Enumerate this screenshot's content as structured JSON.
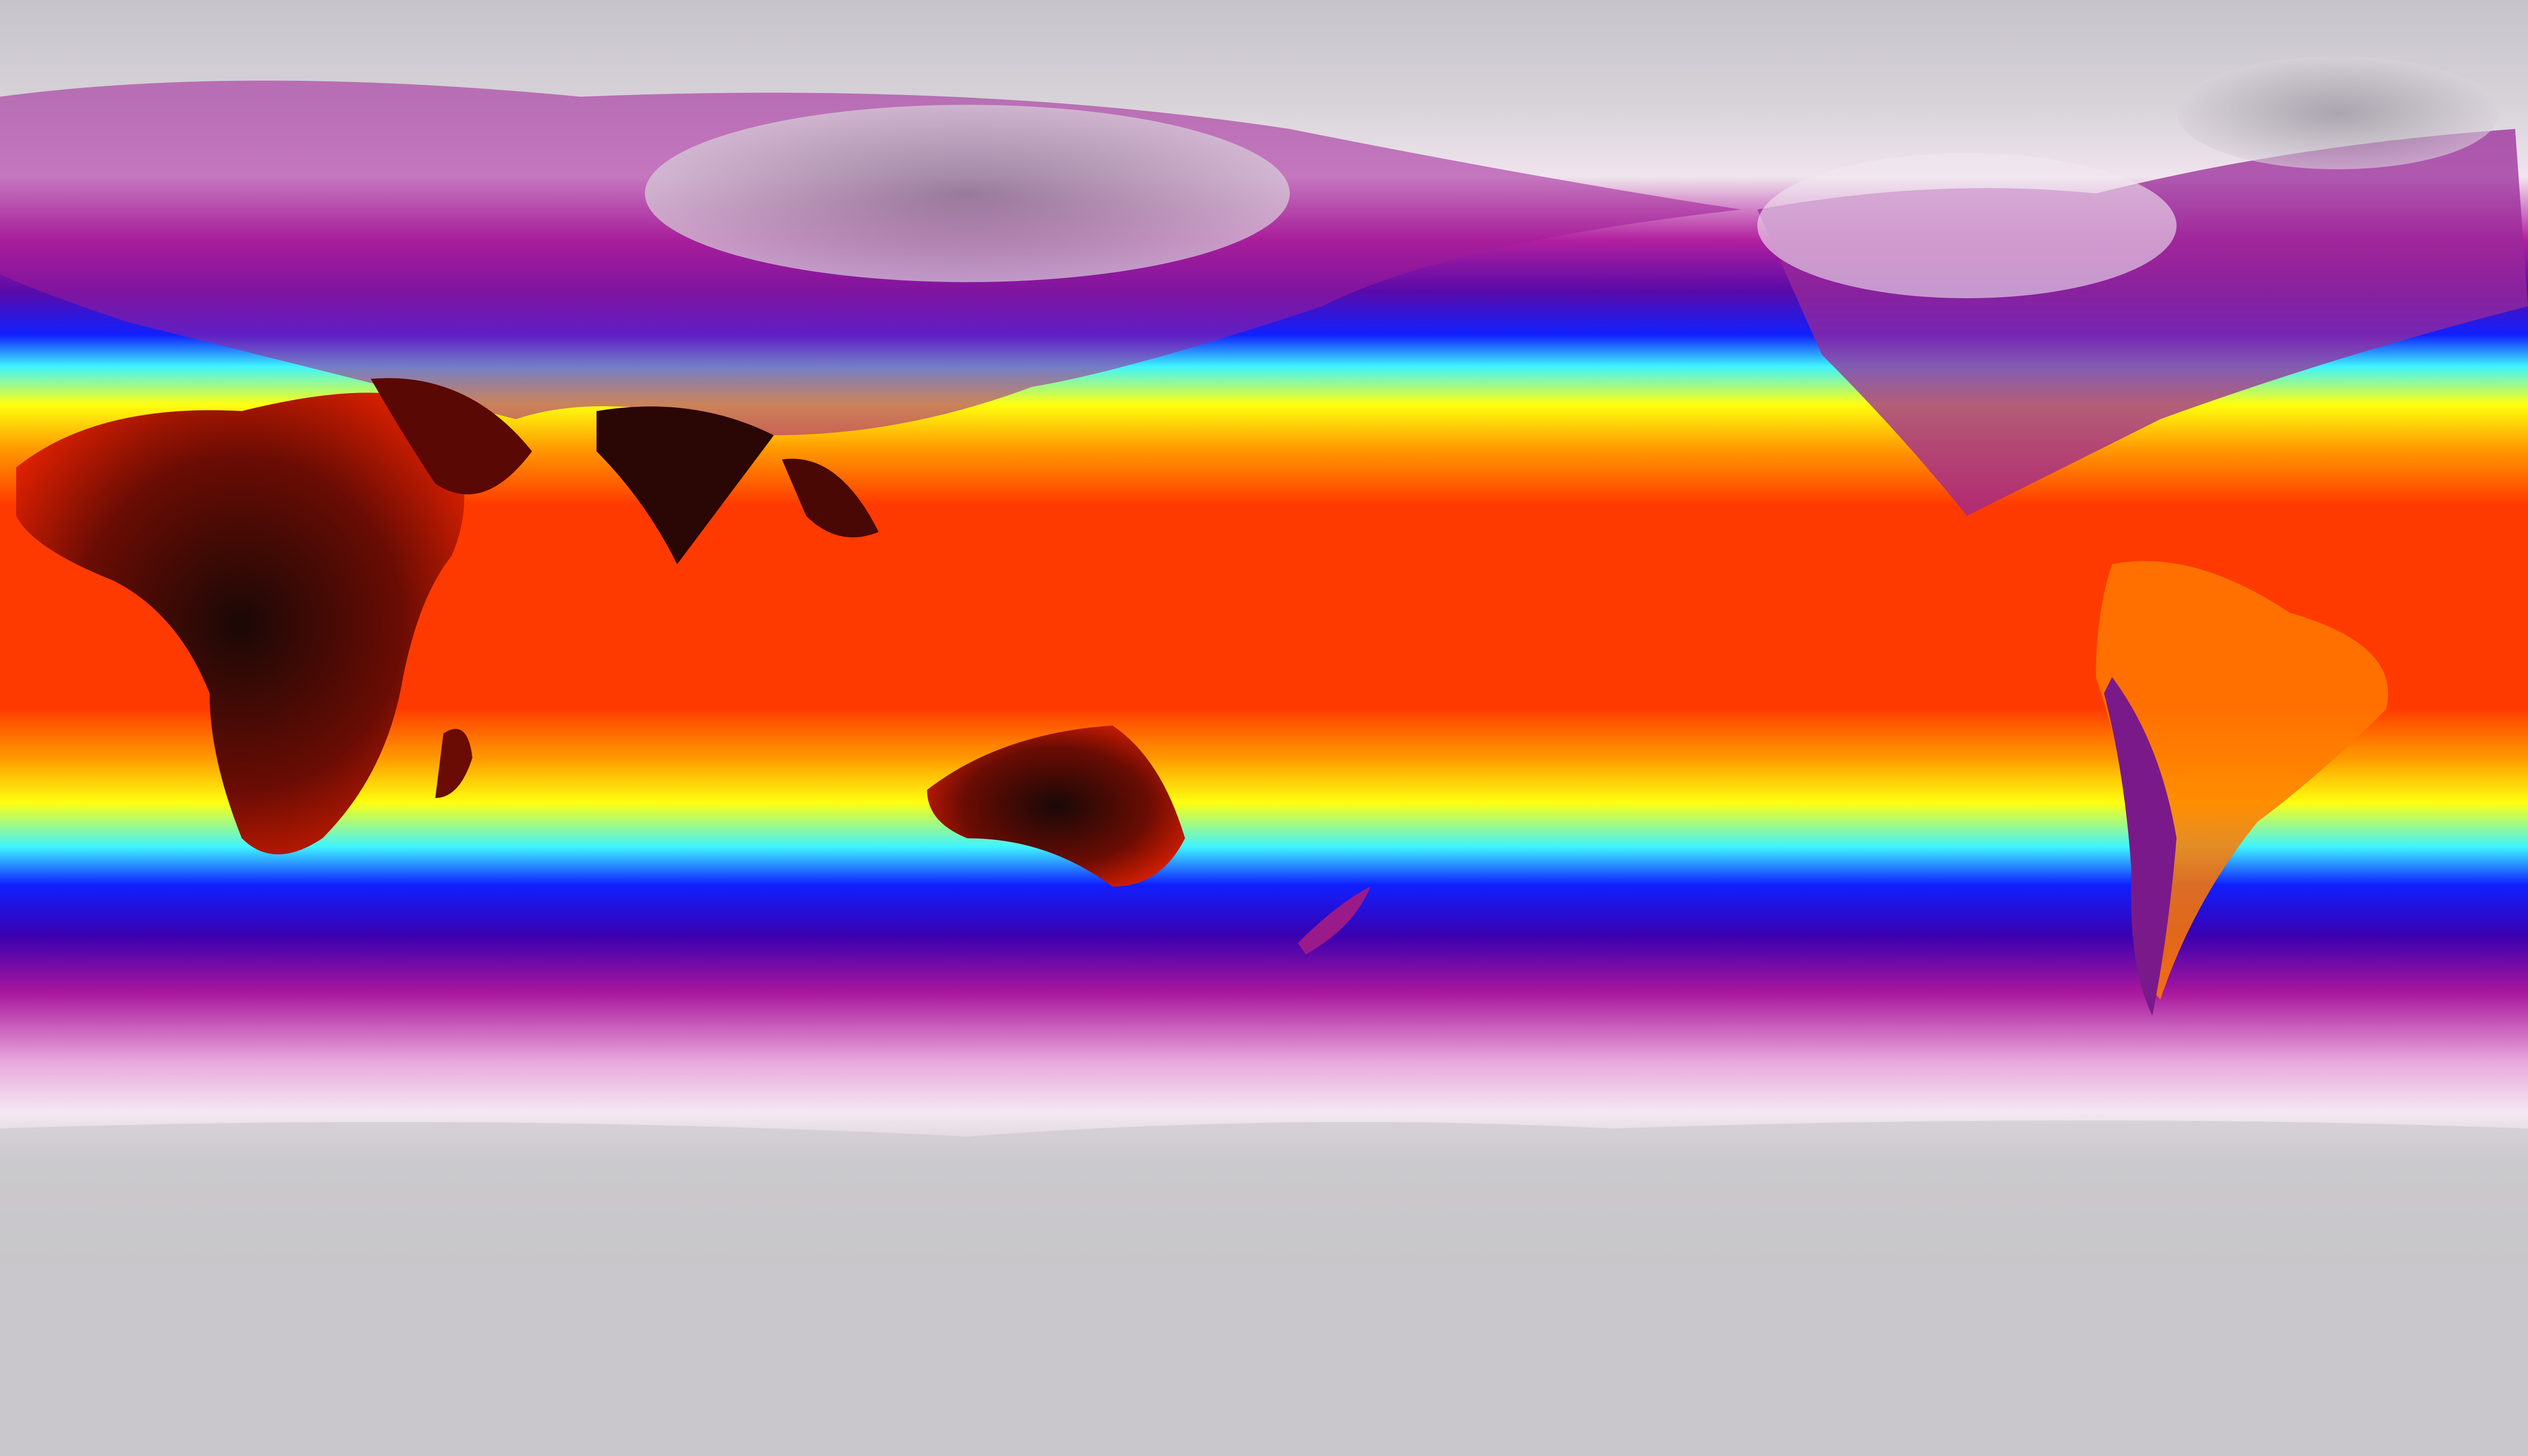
{
  "map": {
    "projection": "equirectangular",
    "colormap": [
      "#c7c3cb",
      "#f2e6f0",
      "#a8169c",
      "#3a00b0",
      "#1020ff",
      "#3ff4ff",
      "#ffff10",
      "#ff9a00",
      "#ff3000",
      "#e01000",
      "#200808"
    ]
  }
}
